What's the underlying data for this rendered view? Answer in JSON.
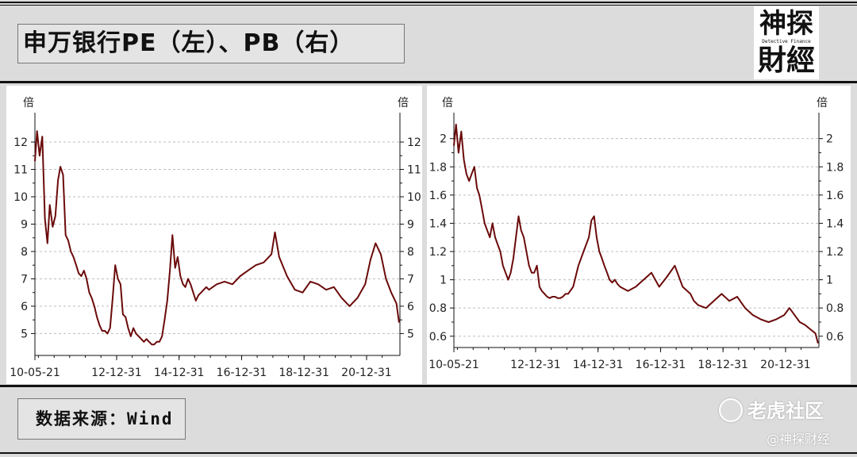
{
  "header": {
    "title": "申万银行PE（左）、PB（右）"
  },
  "logo": {
    "line1": "神探",
    "line2": "財經",
    "subtitle": "Detective Finance"
  },
  "footer": {
    "source": "数据来源：Wind"
  },
  "watermark": {
    "platform": "老虎社区",
    "account": "@神探财经"
  },
  "colors": {
    "series": "#6b0a0a",
    "grid": "#bdbdbd",
    "frame": "#111111"
  },
  "chart_data": [
    {
      "type": "line",
      "title": "",
      "x_ticks": [
        "10-05-21",
        "12-12-31",
        "14-12-31",
        "16-12-31",
        "18-12-31",
        "20-12-31"
      ],
      "y_unit_left": "倍",
      "y_unit_right": "倍",
      "y_ticks": [
        5,
        6,
        7,
        8,
        9,
        10,
        11,
        12
      ],
      "ylim": [
        4.2,
        12.9
      ],
      "grid": true,
      "series": [
        {
          "x": [
            "2010-05-21",
            "2010-06-15",
            "2010-07-15",
            "2010-08-15",
            "2010-09-15",
            "2010-10-15",
            "2010-11-10",
            "2010-12-15",
            "2011-01-15",
            "2011-02-15",
            "2011-03-15",
            "2011-04-15",
            "2011-05-15",
            "2011-06-15",
            "2011-07-15",
            "2011-08-15",
            "2011-09-15",
            "2011-10-15",
            "2011-11-15",
            "2011-12-15",
            "2012-01-15",
            "2012-02-15",
            "2012-03-15",
            "2012-04-15",
            "2012-05-15",
            "2012-06-15",
            "2012-07-15",
            "2012-08-15",
            "2012-09-15",
            "2012-10-15",
            "2012-11-15",
            "2012-12-15",
            "2013-01-15",
            "2013-02-15",
            "2013-03-15",
            "2013-04-15",
            "2013-05-15",
            "2013-06-15",
            "2013-07-15",
            "2013-08-15",
            "2013-09-15",
            "2013-10-15",
            "2013-11-15",
            "2013-12-15",
            "2014-01-15",
            "2014-02-15",
            "2014-03-15",
            "2014-04-15",
            "2014-05-15",
            "2014-06-15",
            "2014-07-15",
            "2014-08-15",
            "2014-09-15",
            "2014-10-15",
            "2014-11-15",
            "2014-12-15",
            "2015-01-15",
            "2015-02-15",
            "2015-03-15",
            "2015-04-15",
            "2015-05-15",
            "2015-06-15",
            "2015-07-15",
            "2015-08-15",
            "2015-09-15",
            "2015-10-15",
            "2015-11-15",
            "2015-12-15",
            "2016-03-15",
            "2016-06-15",
            "2016-09-15",
            "2016-12-15",
            "2017-03-15",
            "2017-06-15",
            "2017-09-15",
            "2017-12-15",
            "2018-01-25",
            "2018-03-15",
            "2018-06-15",
            "2018-09-15",
            "2018-12-15",
            "2019-03-15",
            "2019-06-15",
            "2019-09-15",
            "2019-12-15",
            "2020-03-15",
            "2020-06-15",
            "2020-09-15",
            "2020-12-15",
            "2021-02-15",
            "2021-04-15",
            "2021-06-15",
            "2021-08-15",
            "2021-10-15",
            "2021-12-15",
            "2022-01-15"
          ],
          "values": [
            11.3,
            12.4,
            11.5,
            12.2,
            9.2,
            8.3,
            9.7,
            8.9,
            9.3,
            10.6,
            11.1,
            10.8,
            8.6,
            8.4,
            8.0,
            7.8,
            7.5,
            7.2,
            7.1,
            7.3,
            7.0,
            6.5,
            6.3,
            6.0,
            5.6,
            5.3,
            5.1,
            5.1,
            5.0,
            5.2,
            6.3,
            7.5,
            7.0,
            6.8,
            5.7,
            5.6,
            5.2,
            4.9,
            5.2,
            5.0,
            4.9,
            4.8,
            4.7,
            4.8,
            4.7,
            4.6,
            4.6,
            4.7,
            4.7,
            4.9,
            5.5,
            6.2,
            7.3,
            8.6,
            7.4,
            7.8,
            7.1,
            6.8,
            6.7,
            7.0,
            6.8,
            6.5,
            6.2,
            6.4,
            6.5,
            6.6,
            6.7,
            6.6,
            6.8,
            6.9,
            6.8,
            7.1,
            7.3,
            7.5,
            7.6,
            7.9,
            8.7,
            7.8,
            7.1,
            6.6,
            6.5,
            6.9,
            6.8,
            6.6,
            6.7,
            6.3,
            6.0,
            6.3,
            6.8,
            7.7,
            8.3,
            7.9,
            7.0,
            6.5,
            6.1,
            5.4
          ]
        }
      ]
    },
    {
      "type": "line",
      "title": "",
      "x_ticks": [
        "10-05-21",
        "12-12-31",
        "14-12-31",
        "16-12-31",
        "18-12-31",
        "20-12-31"
      ],
      "y_unit_left": "倍",
      "y_unit_right": "倍",
      "y_ticks": [
        0.6,
        0.8,
        1,
        1.2,
        1.4,
        1.6,
        1.8,
        2
      ],
      "ylim": [
        0.52,
        2.15
      ],
      "grid": true,
      "series": [
        {
          "x": [
            "2010-05-21",
            "2010-06-15",
            "2010-07-15",
            "2010-08-15",
            "2010-09-15",
            "2010-10-15",
            "2010-11-15",
            "2010-12-15",
            "2011-01-15",
            "2011-02-15",
            "2011-03-15",
            "2011-04-15",
            "2011-05-15",
            "2011-06-15",
            "2011-07-15",
            "2011-08-15",
            "2011-09-15",
            "2011-10-15",
            "2011-11-15",
            "2011-12-15",
            "2012-01-15",
            "2012-02-15",
            "2012-03-15",
            "2012-04-15",
            "2012-05-15",
            "2012-06-15",
            "2012-07-15",
            "2012-08-15",
            "2012-09-15",
            "2012-10-15",
            "2012-11-15",
            "2012-12-15",
            "2013-01-15",
            "2013-02-15",
            "2013-03-15",
            "2013-04-15",
            "2013-05-15",
            "2013-06-15",
            "2013-07-15",
            "2013-08-15",
            "2013-09-15",
            "2013-10-15",
            "2013-11-15",
            "2013-12-15",
            "2014-01-15",
            "2014-03-15",
            "2014-05-15",
            "2014-07-15",
            "2014-09-15",
            "2014-10-15",
            "2014-11-15",
            "2014-12-15",
            "2015-01-15",
            "2015-02-15",
            "2015-03-15",
            "2015-04-15",
            "2015-05-15",
            "2015-06-15",
            "2015-07-15",
            "2015-08-15",
            "2015-09-15",
            "2015-12-15",
            "2016-03-15",
            "2016-06-15",
            "2016-09-15",
            "2016-12-15",
            "2017-03-15",
            "2017-06-15",
            "2017-09-15",
            "2017-12-15",
            "2018-01-25",
            "2018-03-15",
            "2018-06-15",
            "2018-09-15",
            "2018-12-15",
            "2019-03-15",
            "2019-06-15",
            "2019-09-15",
            "2019-12-15",
            "2020-03-15",
            "2020-06-15",
            "2020-09-15",
            "2020-12-15",
            "2021-02-15",
            "2021-04-15",
            "2021-06-15",
            "2021-08-15",
            "2021-10-15",
            "2021-12-15",
            "2022-01-15"
          ],
          "values": [
            1.95,
            2.1,
            1.9,
            2.05,
            1.85,
            1.75,
            1.7,
            1.75,
            1.8,
            1.65,
            1.6,
            1.5,
            1.4,
            1.35,
            1.3,
            1.4,
            1.3,
            1.25,
            1.2,
            1.1,
            1.05,
            1.0,
            1.05,
            1.15,
            1.3,
            1.45,
            1.35,
            1.3,
            1.2,
            1.1,
            1.05,
            1.05,
            1.1,
            0.95,
            0.92,
            0.9,
            0.88,
            0.87,
            0.88,
            0.88,
            0.87,
            0.87,
            0.88,
            0.9,
            0.9,
            0.95,
            1.1,
            1.2,
            1.3,
            1.42,
            1.45,
            1.3,
            1.2,
            1.15,
            1.1,
            1.05,
            1.0,
            0.98,
            1.0,
            0.97,
            0.95,
            0.92,
            0.95,
            1.0,
            1.05,
            0.95,
            1.02,
            1.1,
            0.95,
            0.9,
            0.85,
            0.82,
            0.8,
            0.85,
            0.9,
            0.85,
            0.88,
            0.8,
            0.75,
            0.72,
            0.7,
            0.72,
            0.75,
            0.8,
            0.75,
            0.7,
            0.68,
            0.65,
            0.62,
            0.55
          ]
        }
      ]
    }
  ]
}
